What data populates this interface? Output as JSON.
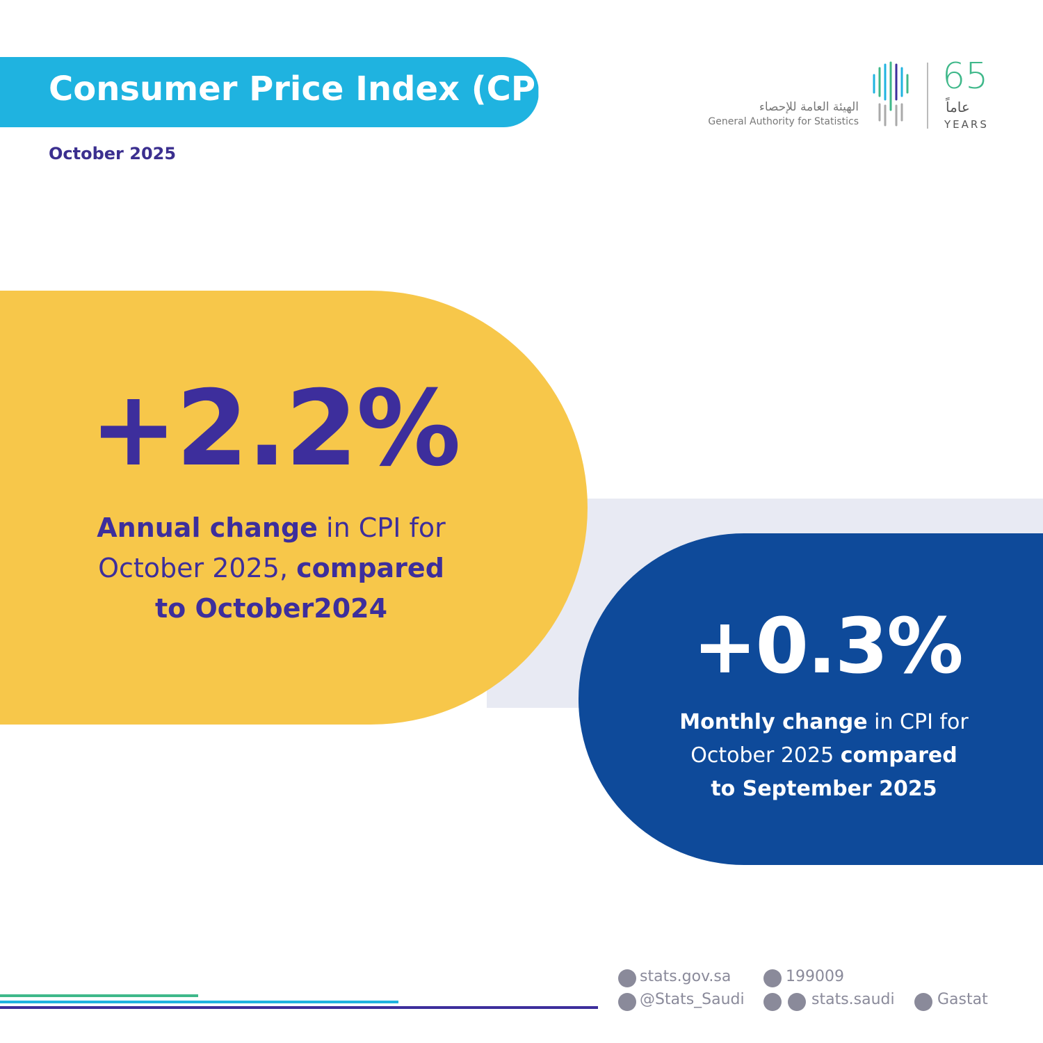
{
  "header": {
    "title": "Consumer Price Index (CPI)",
    "date": "October 2025"
  },
  "logo": {
    "arabic_name": "الهيئة العامة للإحصاء",
    "english_name": "General Authority for Statistics",
    "anniversary": "65",
    "anniversary_arabic": "عاماً",
    "anniversary_label": "YEARS"
  },
  "cards": [
    {
      "value": "+2.2%",
      "description": [
        {
          "text": "Annual change",
          "bold": true
        },
        {
          "text": " in CPI for October 2025, ",
          "bold": false
        },
        {
          "text": "compared to October2024",
          "bold": true
        }
      ]
    },
    {
      "value": "+0.3%",
      "description": [
        {
          "text": "Monthly change",
          "bold": true
        },
        {
          "text": " in CPI for October 2025 ",
          "bold": false
        },
        {
          "text": "compared to September 2025",
          "bold": true
        }
      ]
    }
  ],
  "footer": {
    "website": "stats.gov.sa",
    "phone": "199009",
    "x_handle": "@Stats_Saudi",
    "social_handle": "stats.saudi",
    "linkedin": "Gastat"
  }
}
